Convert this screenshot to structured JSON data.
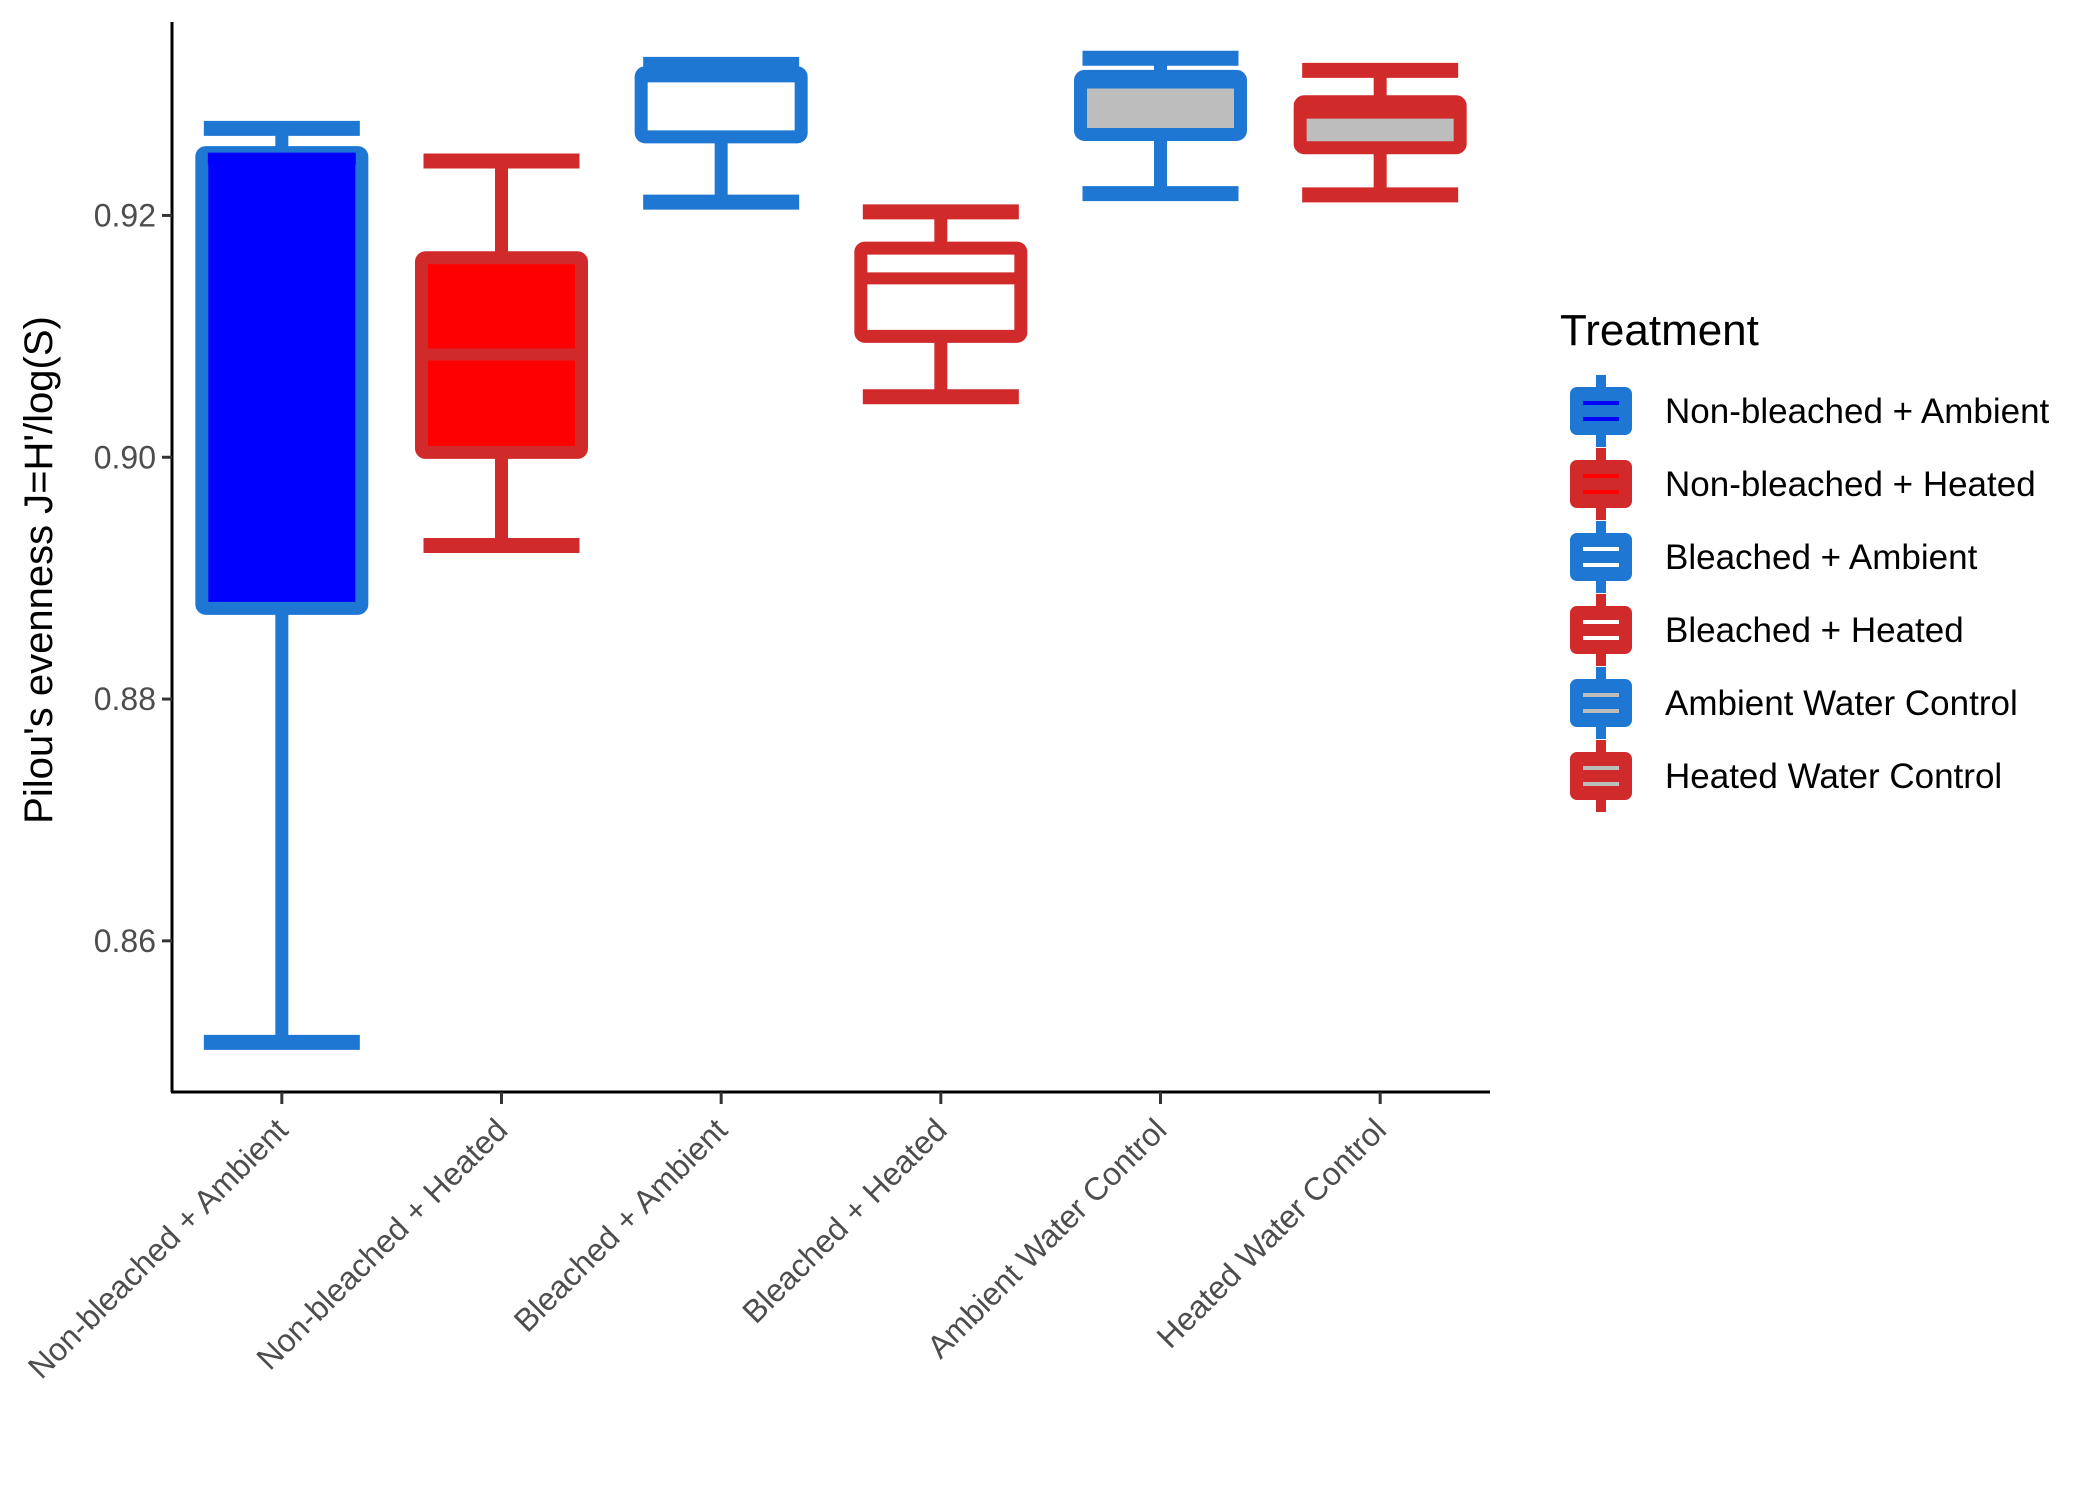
{
  "chart_data": {
    "type": "box",
    "ylabel": "Pilou's evenness J=H'/log(S)",
    "xlabel": "",
    "ylim": [
      0.8475,
      0.936
    ],
    "yticks": [
      0.86,
      0.88,
      0.9,
      0.92
    ],
    "ytick_labels": [
      "0.86",
      "0.88",
      "0.90",
      "0.92"
    ],
    "grid": false,
    "legend": {
      "title": "Treatment",
      "position": "right"
    },
    "categories": [
      "Non-bleached + Ambient",
      "Non-bleached + Heated",
      "Bleached + Ambient",
      "Bleached + Heated",
      "Ambient Water Control",
      "Heated Water Control"
    ],
    "series": [
      {
        "name": "Non-bleached + Ambient",
        "outline": "#1f77d4",
        "fill": "#0000ff",
        "median_color": "#0000ff",
        "whisker_low": 0.8516,
        "q1": 0.8875,
        "median": 0.9247,
        "q3": 0.9252,
        "whisker_high": 0.9272
      },
      {
        "name": "Non-bleached + Heated",
        "outline": "#d12a2a",
        "fill": "#ff0000",
        "median_color": "#d12a2a",
        "whisker_low": 0.8927,
        "q1": 0.9004,
        "median": 0.9085,
        "q3": 0.9165,
        "whisker_high": 0.9245
      },
      {
        "name": "Bleached + Ambient",
        "outline": "#1f77d4",
        "fill": "#ffffff",
        "median_color": "#1f77d4",
        "whisker_low": 0.9211,
        "q1": 0.9265,
        "median": 0.9315,
        "q3": 0.9318,
        "whisker_high": 0.9325
      },
      {
        "name": "Bleached + Heated",
        "outline": "#d12a2a",
        "fill": "#ffffff",
        "median_color": "#d12a2a",
        "whisker_low": 0.905,
        "q1": 0.91,
        "median": 0.9148,
        "q3": 0.9173,
        "whisker_high": 0.9203
      },
      {
        "name": "Ambient Water Control",
        "outline": "#1f77d4",
        "fill": "#bdbdbd",
        "median_color": "#1f77d4",
        "whisker_low": 0.9218,
        "q1": 0.9267,
        "median": 0.931,
        "q3": 0.9315,
        "whisker_high": 0.933
      },
      {
        "name": "Heated Water Control",
        "outline": "#d12a2a",
        "fill": "#bdbdbd",
        "median_color": "#d12a2a",
        "whisker_low": 0.9217,
        "q1": 0.9256,
        "median": 0.9285,
        "q3": 0.9294,
        "whisker_high": 0.932
      }
    ]
  }
}
